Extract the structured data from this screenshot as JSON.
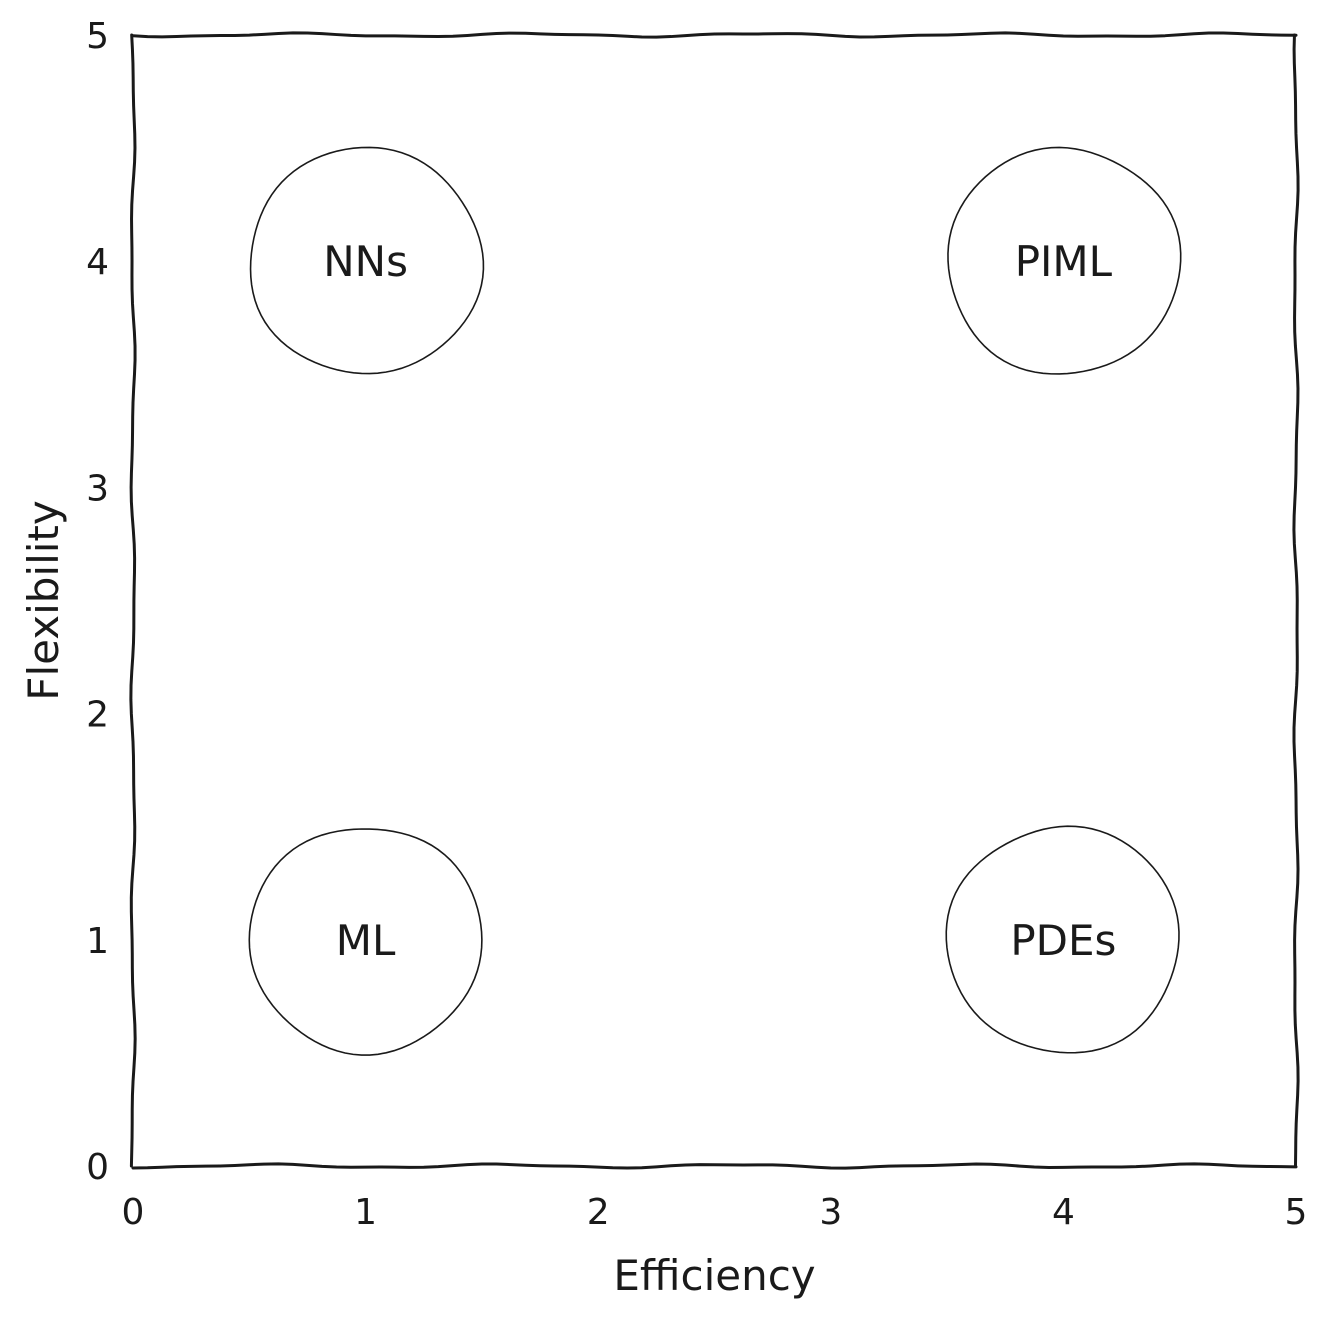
{
  "chart_data": {
    "type": "scatter",
    "xlabel": "Efficiency",
    "ylabel": "Flexibility",
    "xlim": [
      0,
      5
    ],
    "ylim": [
      0,
      5
    ],
    "xticks": [
      "0",
      "1",
      "2",
      "3",
      "4",
      "5"
    ],
    "yticks": [
      "0",
      "1",
      "2",
      "3",
      "4",
      "5"
    ],
    "grid": false,
    "style": "hand-drawn",
    "points": [
      {
        "label": "NNs",
        "x": 1,
        "y": 4
      },
      {
        "label": "PIML",
        "x": 4,
        "y": 4
      },
      {
        "label": "ML",
        "x": 1,
        "y": 1
      },
      {
        "label": "PDEs",
        "x": 4,
        "y": 1
      }
    ],
    "bubble_radius": 0.5
  }
}
